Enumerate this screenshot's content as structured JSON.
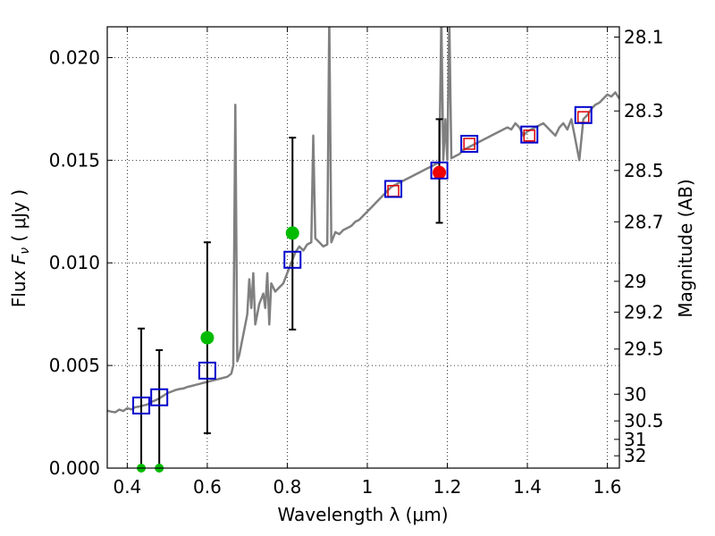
{
  "chart_data": {
    "type": "line",
    "title": "",
    "xlabel": "Wavelength  λ (μm)",
    "ylabel_parts": [
      "Flux  ",
      "F",
      "ν",
      "  ( μJy )"
    ],
    "ylabel_right": "Magnitude (AB)",
    "xlim": [
      0.35,
      1.63
    ],
    "ylim": [
      0.0,
      0.0215
    ],
    "grid": true,
    "x_ticks": [
      0.4,
      0.6,
      0.8,
      1.0,
      1.2,
      1.4,
      1.6
    ],
    "x_tick_labels": [
      "0.4",
      "0.6",
      "0.8",
      "1",
      "1.2",
      "1.4",
      "1.6"
    ],
    "y_ticks": [
      0.0,
      0.005,
      0.01,
      0.015,
      0.02
    ],
    "y_tick_labels": [
      "0.000",
      "0.005",
      "0.010",
      "0.015",
      "0.020"
    ],
    "right_ticks": [
      {
        "label": "28.1",
        "flux": 0.021
      },
      {
        "label": "28.3",
        "flux": 0.0174
      },
      {
        "label": "28.5",
        "flux": 0.0145
      },
      {
        "label": "28.7",
        "flux": 0.012
      },
      {
        "label": "29",
        "flux": 0.0091
      },
      {
        "label": "29.2",
        "flux": 0.0076
      },
      {
        "label": "29.5",
        "flux": 0.0058
      },
      {
        "label": "30",
        "flux": 0.0036
      },
      {
        "label": "30.5",
        "flux": 0.0023
      },
      {
        "label": "31",
        "flux": 0.0014
      },
      {
        "label": "32",
        "flux": 0.0006
      }
    ],
    "series": [
      {
        "name": "model spectrum",
        "color": "#808080",
        "points": [
          [
            0.35,
            0.0028
          ],
          [
            0.36,
            0.00275
          ],
          [
            0.37,
            0.00272
          ],
          [
            0.38,
            0.00285
          ],
          [
            0.39,
            0.00278
          ],
          [
            0.4,
            0.00292
          ],
          [
            0.41,
            0.00286
          ],
          [
            0.42,
            0.00297
          ],
          [
            0.43,
            0.003
          ],
          [
            0.44,
            0.00305
          ],
          [
            0.45,
            0.0031
          ],
          [
            0.46,
            0.00322
          ],
          [
            0.47,
            0.0033
          ],
          [
            0.48,
            0.0034
          ],
          [
            0.49,
            0.00352
          ],
          [
            0.5,
            0.00365
          ],
          [
            0.51,
            0.00372
          ],
          [
            0.52,
            0.0038
          ],
          [
            0.53,
            0.00385
          ],
          [
            0.54,
            0.00388
          ],
          [
            0.55,
            0.00395
          ],
          [
            0.56,
            0.004
          ],
          [
            0.57,
            0.00405
          ],
          [
            0.58,
            0.0041
          ],
          [
            0.59,
            0.00415
          ],
          [
            0.6,
            0.0042
          ],
          [
            0.61,
            0.00425
          ],
          [
            0.62,
            0.0043
          ],
          [
            0.63,
            0.00435
          ],
          [
            0.64,
            0.0044
          ],
          [
            0.65,
            0.00445
          ],
          [
            0.66,
            0.0046
          ],
          [
            0.665,
            0.005
          ],
          [
            0.67,
            0.0177
          ],
          [
            0.675,
            0.0052
          ],
          [
            0.68,
            0.0055
          ],
          [
            0.69,
            0.0065
          ],
          [
            0.7,
            0.0075
          ],
          [
            0.705,
            0.0092
          ],
          [
            0.71,
            0.0078
          ],
          [
            0.715,
            0.0095
          ],
          [
            0.72,
            0.007
          ],
          [
            0.73,
            0.008
          ],
          [
            0.74,
            0.0085
          ],
          [
            0.745,
            0.0078
          ],
          [
            0.75,
            0.0095
          ],
          [
            0.755,
            0.007
          ],
          [
            0.76,
            0.009
          ],
          [
            0.77,
            0.0086
          ],
          [
            0.78,
            0.0088
          ],
          [
            0.79,
            0.009
          ],
          [
            0.8,
            0.0095
          ],
          [
            0.81,
            0.01
          ],
          [
            0.82,
            0.0105
          ],
          [
            0.83,
            0.0108
          ],
          [
            0.84,
            0.0106
          ],
          [
            0.85,
            0.0109
          ],
          [
            0.86,
            0.011
          ],
          [
            0.865,
            0.0162
          ],
          [
            0.87,
            0.0112
          ],
          [
            0.88,
            0.011
          ],
          [
            0.89,
            0.0108
          ],
          [
            0.9,
            0.0109
          ],
          [
            0.905,
            0.022
          ],
          [
            0.91,
            0.011
          ],
          [
            0.92,
            0.0115
          ],
          [
            0.93,
            0.0114
          ],
          [
            0.94,
            0.0116
          ],
          [
            0.95,
            0.0117
          ],
          [
            0.96,
            0.0118
          ],
          [
            0.97,
            0.012
          ],
          [
            0.98,
            0.0121
          ],
          [
            0.99,
            0.0123
          ],
          [
            1.0,
            0.0125
          ],
          [
            1.01,
            0.0127
          ],
          [
            1.02,
            0.0129
          ],
          [
            1.03,
            0.0131
          ],
          [
            1.04,
            0.0133
          ],
          [
            1.05,
            0.0135
          ],
          [
            1.06,
            0.0137
          ],
          [
            1.07,
            0.0138
          ],
          [
            1.08,
            0.0139
          ],
          [
            1.09,
            0.014
          ],
          [
            1.1,
            0.0141
          ],
          [
            1.11,
            0.0142
          ],
          [
            1.12,
            0.0143
          ],
          [
            1.13,
            0.0144
          ],
          [
            1.14,
            0.0145
          ],
          [
            1.15,
            0.0146
          ],
          [
            1.16,
            0.0147
          ],
          [
            1.17,
            0.0148
          ],
          [
            1.18,
            0.0149
          ],
          [
            1.185,
            0.022
          ],
          [
            1.19,
            0.015
          ],
          [
            1.195,
            0.017
          ],
          [
            1.2,
            0.015
          ],
          [
            1.205,
            0.022
          ],
          [
            1.21,
            0.0151
          ],
          [
            1.22,
            0.0152
          ],
          [
            1.23,
            0.0153
          ],
          [
            1.24,
            0.0155
          ],
          [
            1.25,
            0.0156
          ],
          [
            1.26,
            0.0157
          ],
          [
            1.27,
            0.0158
          ],
          [
            1.28,
            0.0159
          ],
          [
            1.29,
            0.016
          ],
          [
            1.3,
            0.0161
          ],
          [
            1.31,
            0.0162
          ],
          [
            1.32,
            0.0163
          ],
          [
            1.33,
            0.0164
          ],
          [
            1.34,
            0.0165
          ],
          [
            1.35,
            0.0166
          ],
          [
            1.36,
            0.0165
          ],
          [
            1.37,
            0.0168
          ],
          [
            1.38,
            0.0166
          ],
          [
            1.39,
            0.0162
          ],
          [
            1.4,
            0.0164
          ],
          [
            1.41,
            0.0165
          ],
          [
            1.42,
            0.0166
          ],
          [
            1.43,
            0.0167
          ],
          [
            1.44,
            0.0168
          ],
          [
            1.45,
            0.0166
          ],
          [
            1.46,
            0.0164
          ],
          [
            1.47,
            0.0162
          ],
          [
            1.48,
            0.0166
          ],
          [
            1.49,
            0.0168
          ],
          [
            1.5,
            0.0165
          ],
          [
            1.51,
            0.017
          ],
          [
            1.52,
            0.016
          ],
          [
            1.53,
            0.015
          ],
          [
            1.54,
            0.017
          ],
          [
            1.55,
            0.0172
          ],
          [
            1.56,
            0.0175
          ],
          [
            1.57,
            0.0177
          ],
          [
            1.58,
            0.0178
          ],
          [
            1.59,
            0.018
          ],
          [
            1.6,
            0.0182
          ],
          [
            1.61,
            0.0181
          ],
          [
            1.62,
            0.0183
          ],
          [
            1.63,
            0.018
          ]
        ]
      }
    ],
    "model_photometry": {
      "name": "model photometry (blue squares)",
      "color": "#0000cc",
      "points": [
        [
          0.435,
          0.00305
        ],
        [
          0.48,
          0.00345
        ],
        [
          0.6,
          0.00475
        ],
        [
          0.813,
          0.01015
        ],
        [
          1.065,
          0.0136
        ],
        [
          1.18,
          0.0145
        ],
        [
          1.255,
          0.0158
        ],
        [
          1.405,
          0.01625
        ],
        [
          1.54,
          0.0172
        ]
      ]
    },
    "model_photometry_inner": {
      "name": "model photometry (red squares)",
      "color": "#dd0000",
      "points": [
        [
          1.065,
          0.0135
        ],
        [
          1.255,
          0.0158
        ],
        [
          1.405,
          0.0162
        ],
        [
          1.54,
          0.0171
        ]
      ]
    },
    "observed_detected": {
      "name": "detections (green)",
      "color": "#00bb00",
      "points": [
        [
          0.6,
          0.00635
        ],
        [
          0.813,
          0.01145
        ]
      ],
      "errors": [
        [
          0.6,
          0.0017,
          0.011
        ],
        [
          0.813,
          0.00675,
          0.0161
        ]
      ]
    },
    "observed_nondetected": {
      "name": "upper limits (green at zero)",
      "color": "#00bb00",
      "points": [
        [
          0.435,
          0.0
        ],
        [
          0.48,
          0.0
        ]
      ],
      "errors": [
        [
          0.435,
          0.0,
          0.0068
        ],
        [
          0.48,
          0.0,
          0.00575
        ]
      ]
    },
    "observed_red": {
      "name": "detection (red)",
      "color": "#ee0000",
      "points": [
        [
          1.18,
          0.0144
        ]
      ],
      "errors": [
        [
          1.18,
          0.01195,
          0.017
        ]
      ]
    }
  }
}
